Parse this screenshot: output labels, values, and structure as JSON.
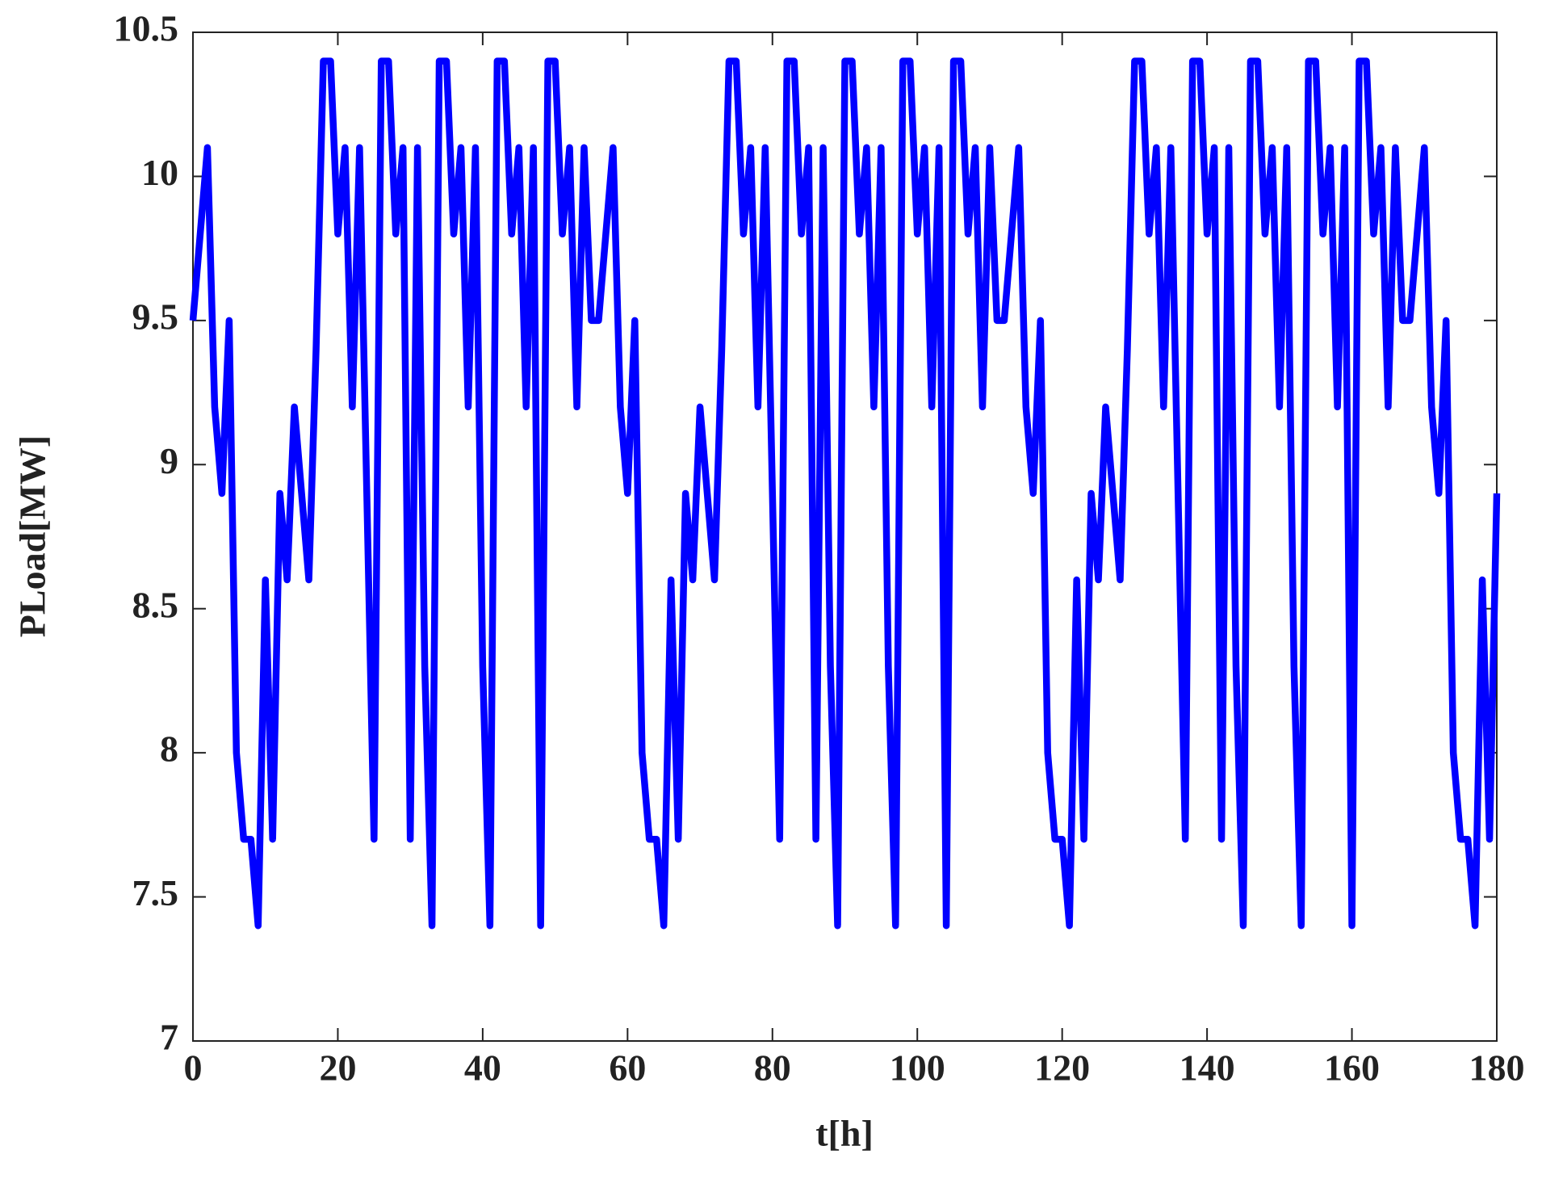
{
  "chart_data": {
    "type": "line",
    "xlabel": "t[h]",
    "ylabel": "PLoad[MW]",
    "xlim": [
      0,
      180
    ],
    "ylim": [
      7,
      10.5
    ],
    "xticks": [
      0,
      20,
      40,
      60,
      80,
      100,
      120,
      140,
      160,
      180
    ],
    "yticks": [
      7,
      7.5,
      8,
      8.5,
      9,
      9.5,
      10,
      10.5
    ],
    "x": [
      0,
      1,
      2,
      3,
      4,
      5,
      6,
      7,
      8,
      9,
      10,
      11,
      12,
      13,
      14,
      15,
      16,
      17,
      18,
      19,
      20,
      21,
      22,
      23,
      24,
      25,
      26,
      27,
      28,
      29,
      30,
      31,
      32,
      33,
      34,
      35,
      36,
      37,
      38,
      39,
      40,
      41,
      42,
      43,
      44,
      45,
      46,
      47,
      48,
      49,
      50,
      51,
      52,
      53,
      54,
      55,
      56,
      57,
      58,
      59,
      60,
      61,
      62,
      63,
      64,
      65,
      66,
      67,
      68,
      69,
      70,
      71,
      72,
      73,
      74,
      75,
      76,
      77,
      78,
      79,
      80,
      81,
      82,
      83,
      84,
      85,
      86,
      87,
      88,
      89,
      90,
      91,
      92,
      93,
      94,
      95,
      96,
      97,
      98,
      99,
      100,
      101,
      102,
      103,
      104,
      105,
      106,
      107,
      108,
      109,
      110,
      111,
      112,
      113,
      114,
      115,
      116,
      117,
      118,
      119,
      120,
      121,
      122,
      123,
      124,
      125,
      126,
      127,
      128,
      129,
      130,
      131,
      132,
      133,
      134,
      135,
      136,
      137,
      138,
      139,
      140,
      141,
      142,
      143,
      144,
      145,
      146,
      147,
      148,
      149,
      150,
      151,
      152,
      153,
      154,
      155,
      156,
      157,
      158,
      159,
      160,
      161,
      162,
      163,
      164,
      165,
      166,
      167,
      168,
      169,
      170,
      171,
      172,
      173,
      174,
      175,
      176,
      177,
      178,
      179,
      180
    ],
    "series": [
      {
        "color": "#0000ff",
        "values": [
          9.5,
          9.8,
          10.1,
          9.2,
          8.9,
          9.5,
          8.0,
          7.7,
          7.7,
          7.4,
          8.6,
          7.7,
          8.9,
          8.6,
          9.2,
          8.9,
          8.6,
          9.4,
          10.4,
          10.4,
          9.8,
          10.1,
          9.2,
          10.1,
          8.9,
          7.7,
          10.4,
          10.4,
          9.8,
          10.1,
          7.7,
          10.1,
          8.3,
          7.4,
          10.4,
          10.4,
          9.8,
          10.1,
          9.2,
          10.1,
          8.3,
          7.4,
          10.4,
          10.4,
          9.8,
          10.1,
          9.2,
          10.1,
          7.4,
          10.4,
          10.4,
          9.8,
          10.1,
          9.2,
          10.1,
          9.5,
          9.5,
          9.8,
          10.1,
          9.2,
          8.9,
          9.5,
          8.0,
          7.7,
          7.7,
          7.4,
          8.6,
          7.7,
          8.9,
          8.6,
          9.2,
          8.9,
          8.6,
          9.4,
          10.4,
          10.4,
          9.8,
          10.1,
          9.2,
          10.1,
          8.9,
          7.7,
          10.4,
          10.4,
          9.8,
          10.1,
          7.7,
          10.1,
          8.3,
          7.4,
          10.4,
          10.4,
          9.8,
          10.1,
          9.2,
          10.1,
          8.3,
          7.4,
          10.4,
          10.4,
          9.8,
          10.1,
          9.2,
          10.1,
          7.4,
          10.4,
          10.4,
          9.8,
          10.1,
          9.2,
          10.1,
          9.5,
          9.5,
          9.8,
          10.1,
          9.2,
          8.9,
          9.5,
          8.0,
          7.7,
          7.7,
          7.4,
          8.6,
          7.7,
          8.9,
          8.6,
          9.2,
          8.9,
          8.6,
          9.4,
          10.4,
          10.4,
          9.8,
          10.1,
          9.2,
          10.1,
          8.9,
          7.7,
          10.4,
          10.4,
          9.8,
          10.1,
          7.7,
          10.1,
          8.3,
          7.4,
          10.4,
          10.4,
          9.8,
          10.1,
          9.2,
          10.1,
          8.3,
          7.4,
          10.4,
          10.4,
          9.8,
          10.1,
          9.2,
          10.1,
          7.4,
          10.4,
          10.4,
          9.8,
          10.1,
          9.2,
          10.1,
          9.5,
          9.5,
          9.8,
          10.1,
          9.2,
          8.9,
          9.5,
          8.0,
          7.7,
          7.7,
          7.4,
          8.6,
          7.7,
          8.9
        ]
      }
    ]
  }
}
